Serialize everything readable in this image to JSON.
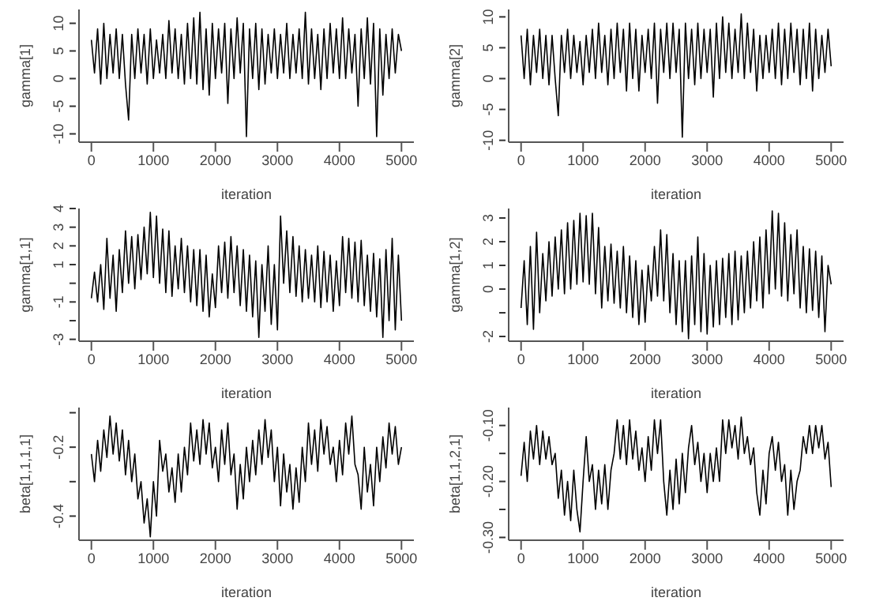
{
  "chart_data": [
    {
      "type": "line",
      "xlabel": "iteration",
      "ylabel": "gamma[1]",
      "xlim": [
        -200,
        5200
      ],
      "xticks": [
        0,
        1000,
        2000,
        3000,
        4000,
        5000
      ],
      "ylim": [
        -11.5,
        12.5
      ],
      "yticks": [
        -10,
        -5,
        0,
        5,
        10
      ],
      "x": [
        0,
        50,
        100,
        150,
        200,
        250,
        300,
        350,
        400,
        450,
        500,
        550,
        600,
        650,
        700,
        750,
        800,
        850,
        900,
        950,
        1000,
        1050,
        1100,
        1150,
        1200,
        1250,
        1300,
        1350,
        1400,
        1450,
        1500,
        1550,
        1600,
        1650,
        1700,
        1750,
        1800,
        1850,
        1900,
        1950,
        2000,
        2050,
        2100,
        2150,
        2200,
        2250,
        2300,
        2350,
        2400,
        2450,
        2500,
        2550,
        2600,
        2650,
        2700,
        2750,
        2800,
        2850,
        2900,
        2950,
        3000,
        3050,
        3100,
        3150,
        3200,
        3250,
        3300,
        3350,
        3400,
        3450,
        3500,
        3550,
        3600,
        3650,
        3700,
        3750,
        3800,
        3850,
        3900,
        3950,
        4000,
        4050,
        4100,
        4150,
        4200,
        4250,
        4300,
        4350,
        4400,
        4450,
        4500,
        4550,
        4600,
        4650,
        4700,
        4750,
        4800,
        4850,
        4900,
        4950,
        5000
      ],
      "series": [
        {
          "color": "#000000",
          "values": [
            7,
            1,
            9,
            -1,
            10,
            0,
            8,
            1,
            9,
            0,
            8,
            -1,
            -7.5,
            8,
            0,
            9,
            1,
            8,
            -1,
            9,
            0,
            7,
            1,
            8,
            0,
            10.5,
            1,
            9,
            0,
            8,
            -1,
            10,
            0,
            11,
            -1,
            12,
            -2,
            9,
            -3,
            10,
            0,
            9,
            1,
            10,
            -4.5,
            9,
            0,
            11,
            1,
            10,
            -10.5,
            9,
            0,
            10,
            -2,
            9,
            -1,
            8,
            1,
            9,
            0,
            8,
            1,
            10,
            0,
            8,
            1,
            9,
            0,
            12,
            -1,
            9,
            0,
            8,
            -2,
            9,
            0,
            10,
            1,
            9,
            0,
            11,
            0,
            9,
            1,
            8,
            -5,
            9,
            0,
            11,
            -1,
            10,
            -10.5,
            9,
            -3,
            8,
            0,
            9,
            1,
            8,
            5
          ]
        }
      ]
    },
    {
      "type": "line",
      "xlabel": "iteration",
      "ylabel": "gamma[2]",
      "xlim": [
        -200,
        5200
      ],
      "xticks": [
        0,
        1000,
        2000,
        3000,
        4000,
        5000
      ],
      "ylim": [
        -10.3,
        11.2
      ],
      "yticks": [
        -10,
        -5,
        0,
        5,
        10
      ],
      "x": [
        0,
        50,
        100,
        150,
        200,
        250,
        300,
        350,
        400,
        450,
        500,
        550,
        600,
        650,
        700,
        750,
        800,
        850,
        900,
        950,
        1000,
        1050,
        1100,
        1150,
        1200,
        1250,
        1300,
        1350,
        1400,
        1450,
        1500,
        1550,
        1600,
        1650,
        1700,
        1750,
        1800,
        1850,
        1900,
        1950,
        2000,
        2050,
        2100,
        2150,
        2200,
        2250,
        2300,
        2350,
        2400,
        2450,
        2500,
        2550,
        2600,
        2650,
        2700,
        2750,
        2800,
        2850,
        2900,
        2950,
        3000,
        3050,
        3100,
        3150,
        3200,
        3250,
        3300,
        3350,
        3400,
        3450,
        3500,
        3550,
        3600,
        3650,
        3700,
        3750,
        3800,
        3850,
        3900,
        3950,
        4000,
        4050,
        4100,
        4150,
        4200,
        4250,
        4300,
        4350,
        4400,
        4450,
        4500,
        4550,
        4600,
        4650,
        4700,
        4750,
        4800,
        4850,
        4900,
        4950,
        5000
      ],
      "series": [
        {
          "color": "#000000",
          "values": [
            7,
            0,
            8,
            -1,
            7,
            1,
            8,
            0,
            7,
            -1,
            7,
            0,
            -6,
            7,
            1,
            8,
            0,
            7,
            1,
            6,
            -1,
            7,
            1,
            8,
            0,
            9,
            1,
            7,
            -1,
            8,
            0,
            9,
            1,
            8,
            -2,
            9,
            0,
            8,
            -2,
            7,
            1,
            8,
            0,
            9,
            -4,
            8,
            1,
            9,
            0,
            9,
            1,
            8,
            -9.5,
            9,
            0,
            8,
            -1,
            9,
            0,
            8,
            1,
            8,
            -3,
            9,
            0,
            10,
            1,
            9,
            0,
            8,
            1,
            10.5,
            0,
            9,
            1,
            8,
            -2,
            7,
            0,
            7,
            1,
            8,
            0,
            9,
            -1,
            8,
            0,
            9,
            1,
            8,
            -1,
            8,
            0,
            9,
            -2,
            8,
            0,
            7,
            1,
            8,
            2
          ]
        }
      ]
    },
    {
      "type": "line",
      "xlabel": "iteration",
      "ylabel": "gamma[1,1]",
      "xlim": [
        -200,
        5200
      ],
      "xticks": [
        0,
        1000,
        2000,
        3000,
        4000,
        5000
      ],
      "ylim": [
        -3.1,
        4
      ],
      "yticks": [
        -3,
        {
          "value": -2,
          "label": null
        },
        -1,
        {
          "value": 0,
          "label": null
        },
        1,
        2,
        3,
        4
      ],
      "x": [
        0,
        50,
        100,
        150,
        200,
        250,
        300,
        350,
        400,
        450,
        500,
        550,
        600,
        650,
        700,
        750,
        800,
        850,
        900,
        950,
        1000,
        1050,
        1100,
        1150,
        1200,
        1250,
        1300,
        1350,
        1400,
        1450,
        1500,
        1550,
        1600,
        1650,
        1700,
        1750,
        1800,
        1850,
        1900,
        1950,
        2000,
        2050,
        2100,
        2150,
        2200,
        2250,
        2300,
        2350,
        2400,
        2450,
        2500,
        2550,
        2600,
        2650,
        2700,
        2750,
        2800,
        2850,
        2900,
        2950,
        3000,
        3050,
        3100,
        3150,
        3200,
        3250,
        3300,
        3350,
        3400,
        3450,
        3500,
        3550,
        3600,
        3650,
        3700,
        3750,
        3800,
        3850,
        3900,
        3950,
        4000,
        4050,
        4100,
        4150,
        4200,
        4250,
        4300,
        4350,
        4400,
        4450,
        4500,
        4550,
        4600,
        4650,
        4700,
        4750,
        4800,
        4850,
        4900,
        4950,
        5000
      ],
      "series": [
        {
          "color": "#000000",
          "values": [
            -0.8,
            0.6,
            -1,
            1,
            -1.4,
            2.4,
            -0.8,
            1.5,
            -1.5,
            1.8,
            -0.5,
            2.8,
            0,
            2.5,
            -0.3,
            2.6,
            0.2,
            3,
            0.5,
            3.8,
            0.3,
            3.6,
            0,
            2.9,
            -0.5,
            2.8,
            -0.7,
            2,
            -0.3,
            2.4,
            -0.5,
            2,
            -1,
            1.8,
            -1.2,
            1.8,
            -1.5,
            1.5,
            -1.8,
            0.5,
            -1.3,
            2,
            -0.5,
            2.2,
            -0.8,
            2.5,
            -0.5,
            2,
            -1.2,
            1.8,
            -1.5,
            1.5,
            -1.8,
            1.2,
            -2.9,
            1,
            -1.5,
            2,
            -2.2,
            1,
            -2.5,
            3.6,
            0,
            2.8,
            -0.5,
            2.5,
            -0.7,
            2,
            -1,
            1.8,
            -0.8,
            1.5,
            -1,
            2,
            -1.3,
            1.7,
            -1,
            1.5,
            -1.5,
            1.2,
            -1.2,
            2.5,
            -0.5,
            2.4,
            -0.8,
            2.2,
            -1,
            2.3,
            -1.2,
            1.5,
            -1.5,
            1.6,
            -1.8,
            1.3,
            -2.9,
            1.8,
            -2,
            2.4,
            -2.5,
            1.5,
            -2
          ]
        }
      ]
    },
    {
      "type": "line",
      "xlabel": "iteration",
      "ylabel": "gamma[1,2]",
      "xlim": [
        -200,
        5200
      ],
      "xticks": [
        0,
        1000,
        2000,
        3000,
        4000,
        5000
      ],
      "ylim": [
        -2.2,
        3.4
      ],
      "yticks": [
        -2,
        {
          "value": -1,
          "label": null
        },
        0,
        1,
        2,
        3
      ],
      "x": [
        0,
        50,
        100,
        150,
        200,
        250,
        300,
        350,
        400,
        450,
        500,
        550,
        600,
        650,
        700,
        750,
        800,
        850,
        900,
        950,
        1000,
        1050,
        1100,
        1150,
        1200,
        1250,
        1300,
        1350,
        1400,
        1450,
        1500,
        1550,
        1600,
        1650,
        1700,
        1750,
        1800,
        1850,
        1900,
        1950,
        2000,
        2050,
        2100,
        2150,
        2200,
        2250,
        2300,
        2350,
        2400,
        2450,
        2500,
        2550,
        2600,
        2650,
        2700,
        2750,
        2800,
        2850,
        2900,
        2950,
        3000,
        3050,
        3100,
        3150,
        3200,
        3250,
        3300,
        3350,
        3400,
        3450,
        3500,
        3550,
        3600,
        3650,
        3700,
        3750,
        3800,
        3850,
        3900,
        3950,
        4000,
        4050,
        4100,
        4150,
        4200,
        4250,
        4300,
        4350,
        4400,
        4450,
        4500,
        4550,
        4600,
        4650,
        4700,
        4750,
        4800,
        4850,
        4900,
        4950,
        5000
      ],
      "series": [
        {
          "color": "#000000",
          "values": [
            -0.8,
            1.2,
            -1.5,
            1.8,
            -1.7,
            2.4,
            -1,
            1.5,
            -0.5,
            2,
            -0.3,
            2.2,
            0,
            2.5,
            -0.2,
            2.8,
            0,
            2.9,
            0.2,
            3.2,
            0.3,
            3.1,
            0.2,
            3.2,
            -0.2,
            2.6,
            -0.8,
            1.8,
            -0.5,
            1.9,
            -0.6,
            1.6,
            -0.8,
            1.8,
            -1,
            1.4,
            -1.2,
            1.2,
            -1.5,
            0.8,
            -1.4,
            1,
            -0.5,
            1.8,
            -0.3,
            2.5,
            -0.5,
            2.3,
            -1,
            1.5,
            -1.5,
            1.2,
            -1.8,
            1.2,
            -2.1,
            1.4,
            -1.5,
            2.2,
            -1.8,
            1.5,
            -1.9,
            1,
            -1.6,
            1.2,
            -1.5,
            1.3,
            -1.2,
            1.5,
            -1.5,
            1.6,
            -1.3,
            1.4,
            -1,
            1.6,
            -0.8,
            2,
            -0.5,
            2.2,
            -0.8,
            2.5,
            -0.2,
            3.3,
            0,
            3.2,
            -0.3,
            2.8,
            -0.5,
            2.3,
            -0.2,
            2.5,
            -0.8,
            1.8,
            -1,
            1.7,
            -0.9,
            1.6,
            -1.2,
            1.4,
            -1.8,
            1,
            0.2
          ]
        }
      ]
    },
    {
      "type": "line",
      "xlabel": "iteration",
      "ylabel": "beta[1,1,1,1]",
      "xlim": [
        -200,
        5200
      ],
      "xticks": [
        0,
        1000,
        2000,
        3000,
        4000,
        5000
      ],
      "ylim": [
        -0.47,
        -0.085
      ],
      "yticks": [
        {
          "value": -0.4,
          "label": "-0.4"
        },
        {
          "value": -0.3,
          "label": null
        },
        {
          "value": -0.2,
          "label": "-0.2"
        },
        {
          "value": -0.1,
          "label": null
        }
      ],
      "x": [
        0,
        50,
        100,
        150,
        200,
        250,
        300,
        350,
        400,
        450,
        500,
        550,
        600,
        650,
        700,
        750,
        800,
        850,
        900,
        950,
        1000,
        1050,
        1100,
        1150,
        1200,
        1250,
        1300,
        1350,
        1400,
        1450,
        1500,
        1550,
        1600,
        1650,
        1700,
        1750,
        1800,
        1850,
        1900,
        1950,
        2000,
        2050,
        2100,
        2150,
        2200,
        2250,
        2300,
        2350,
        2400,
        2450,
        2500,
        2550,
        2600,
        2650,
        2700,
        2750,
        2800,
        2850,
        2900,
        2950,
        3000,
        3050,
        3100,
        3150,
        3200,
        3250,
        3300,
        3350,
        3400,
        3450,
        3500,
        3550,
        3600,
        3650,
        3700,
        3750,
        3800,
        3850,
        3900,
        3950,
        4000,
        4050,
        4100,
        4150,
        4200,
        4250,
        4300,
        4350,
        4400,
        4450,
        4500,
        4550,
        4600,
        4650,
        4700,
        4750,
        4800,
        4850,
        4900,
        4950,
        5000
      ],
      "series": [
        {
          "color": "#000000",
          "values": [
            -0.22,
            -0.3,
            -0.18,
            -0.27,
            -0.15,
            -0.23,
            -0.11,
            -0.22,
            -0.13,
            -0.24,
            -0.15,
            -0.28,
            -0.18,
            -0.3,
            -0.22,
            -0.35,
            -0.3,
            -0.42,
            -0.35,
            -0.46,
            -0.3,
            -0.4,
            -0.18,
            -0.27,
            -0.22,
            -0.33,
            -0.26,
            -0.36,
            -0.22,
            -0.33,
            -0.2,
            -0.28,
            -0.13,
            -0.24,
            -0.15,
            -0.25,
            -0.12,
            -0.22,
            -0.13,
            -0.26,
            -0.2,
            -0.3,
            -0.15,
            -0.25,
            -0.13,
            -0.28,
            -0.22,
            -0.38,
            -0.25,
            -0.35,
            -0.2,
            -0.3,
            -0.18,
            -0.28,
            -0.15,
            -0.25,
            -0.12,
            -0.23,
            -0.15,
            -0.3,
            -0.2,
            -0.37,
            -0.22,
            -0.33,
            -0.25,
            -0.38,
            -0.26,
            -0.36,
            -0.2,
            -0.3,
            -0.13,
            -0.25,
            -0.15,
            -0.27,
            -0.12,
            -0.22,
            -0.14,
            -0.25,
            -0.2,
            -0.3,
            -0.18,
            -0.28,
            -0.13,
            -0.22,
            -0.11,
            -0.25,
            -0.28,
            -0.38,
            -0.2,
            -0.33,
            -0.25,
            -0.37,
            -0.2,
            -0.3,
            -0.17,
            -0.26,
            -0.13,
            -0.22,
            -0.14,
            -0.25,
            -0.2
          ]
        }
      ]
    },
    {
      "type": "line",
      "xlabel": "iteration",
      "ylabel": "beta[1,1,2,1]",
      "xlim": [
        -200,
        5200
      ],
      "xticks": [
        0,
        1000,
        2000,
        3000,
        4000,
        5000
      ],
      "ylim": [
        -0.305,
        -0.068
      ],
      "yticks": [
        {
          "value": -0.3,
          "label": "-0.30"
        },
        {
          "value": -0.25,
          "label": null
        },
        {
          "value": -0.2,
          "label": "-0.20"
        },
        {
          "value": -0.15,
          "label": null
        },
        {
          "value": -0.1,
          "label": "-0.10"
        }
      ],
      "x": [
        0,
        50,
        100,
        150,
        200,
        250,
        300,
        350,
        400,
        450,
        500,
        550,
        600,
        650,
        700,
        750,
        800,
        850,
        900,
        950,
        1000,
        1050,
        1100,
        1150,
        1200,
        1250,
        1300,
        1350,
        1400,
        1450,
        1500,
        1550,
        1600,
        1650,
        1700,
        1750,
        1800,
        1850,
        1900,
        1950,
        2000,
        2050,
        2100,
        2150,
        2200,
        2250,
        2300,
        2350,
        2400,
        2450,
        2500,
        2550,
        2600,
        2650,
        2700,
        2750,
        2800,
        2850,
        2900,
        2950,
        3000,
        3050,
        3100,
        3150,
        3200,
        3250,
        3300,
        3350,
        3400,
        3450,
        3500,
        3550,
        3600,
        3650,
        3700,
        3750,
        3800,
        3850,
        3900,
        3950,
        4000,
        4050,
        4100,
        4150,
        4200,
        4250,
        4300,
        4350,
        4400,
        4450,
        4500,
        4550,
        4600,
        4650,
        4700,
        4750,
        4800,
        4850,
        4900,
        4950,
        5000
      ],
      "series": [
        {
          "color": "#000000",
          "values": [
            -0.19,
            -0.13,
            -0.2,
            -0.11,
            -0.16,
            -0.1,
            -0.17,
            -0.11,
            -0.16,
            -0.12,
            -0.17,
            -0.15,
            -0.23,
            -0.18,
            -0.26,
            -0.2,
            -0.27,
            -0.18,
            -0.25,
            -0.29,
            -0.2,
            -0.12,
            -0.2,
            -0.17,
            -0.25,
            -0.18,
            -0.24,
            -0.17,
            -0.25,
            -0.18,
            -0.15,
            -0.09,
            -0.16,
            -0.1,
            -0.17,
            -0.09,
            -0.16,
            -0.11,
            -0.18,
            -0.14,
            -0.2,
            -0.12,
            -0.18,
            -0.09,
            -0.15,
            -0.09,
            -0.2,
            -0.26,
            -0.18,
            -0.25,
            -0.16,
            -0.24,
            -0.15,
            -0.22,
            -0.14,
            -0.1,
            -0.17,
            -0.13,
            -0.2,
            -0.15,
            -0.22,
            -0.15,
            -0.2,
            -0.14,
            -0.2,
            -0.09,
            -0.15,
            -0.09,
            -0.14,
            -0.1,
            -0.16,
            -0.085,
            -0.15,
            -0.12,
            -0.17,
            -0.14,
            -0.22,
            -0.26,
            -0.18,
            -0.24,
            -0.15,
            -0.12,
            -0.18,
            -0.13,
            -0.2,
            -0.17,
            -0.26,
            -0.18,
            -0.25,
            -0.2,
            -0.18,
            -0.12,
            -0.15,
            -0.1,
            -0.15,
            -0.1,
            -0.14,
            -0.1,
            -0.16,
            -0.13,
            -0.21
          ]
        }
      ]
    }
  ]
}
